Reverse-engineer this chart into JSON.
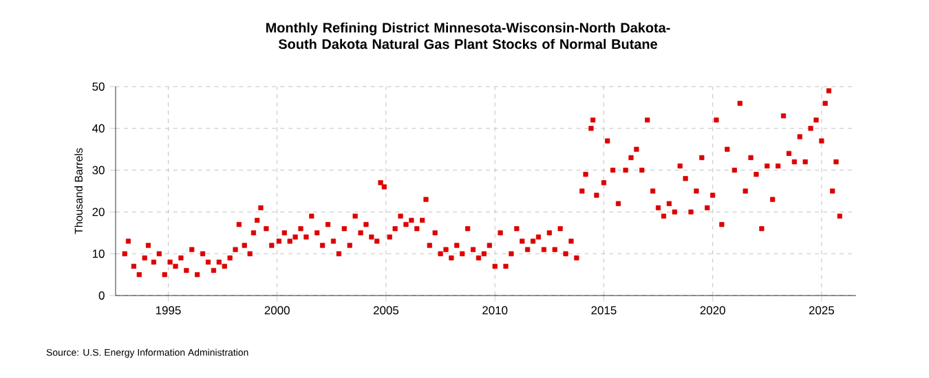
{
  "chart_data": {
    "type": "scatter",
    "title": "Monthly Refining District Minnesota-Wisconsin-North Dakota-South Dakota Natural Gas Plant Stocks of Normal Butane",
    "ylabel": "Thousand Barrels",
    "annotations": [
      "Source: U.S. Energy Information Administration"
    ],
    "x": [
      "1993-01",
      "1993-03",
      "1993-06",
      "1993-09",
      "1993-12",
      "1994-02",
      "1994-05",
      "1994-08",
      "1994-11",
      "1995-02",
      "1995-05",
      "1995-08",
      "1995-11",
      "1996-02",
      "1996-05",
      "1996-08",
      "1996-11",
      "1997-02",
      "1997-05",
      "1997-08",
      "1997-11",
      "1998-02",
      "1998-04",
      "1998-07",
      "1998-10",
      "1998-12",
      "1999-02",
      "1999-04",
      "1999-07",
      "1999-10",
      "2000-02",
      "2000-05",
      "2000-08",
      "2000-11",
      "2001-02",
      "2001-05",
      "2001-08",
      "2001-11",
      "2002-02",
      "2002-05",
      "2002-08",
      "2002-11",
      "2003-02",
      "2003-05",
      "2003-08",
      "2003-11",
      "2004-02",
      "2004-05",
      "2004-08",
      "2004-10",
      "2004-12",
      "2005-03",
      "2005-06",
      "2005-09",
      "2005-12",
      "2006-03",
      "2006-06",
      "2006-09",
      "2006-11",
      "2007-01",
      "2007-04",
      "2007-07",
      "2007-10",
      "2008-01",
      "2008-04",
      "2008-07",
      "2008-10",
      "2009-01",
      "2009-04",
      "2009-07",
      "2009-10",
      "2010-01",
      "2010-04",
      "2010-07",
      "2010-10",
      "2011-01",
      "2011-04",
      "2011-07",
      "2011-10",
      "2012-01",
      "2012-04",
      "2012-07",
      "2012-10",
      "2013-01",
      "2013-04",
      "2013-07",
      "2013-10",
      "2014-01",
      "2014-03",
      "2014-06",
      "2014-07",
      "2014-09",
      "2015-01",
      "2015-03",
      "2015-06",
      "2015-09",
      "2016-01",
      "2016-04",
      "2016-07",
      "2016-10",
      "2017-01",
      "2017-04",
      "2017-07",
      "2017-10",
      "2018-01",
      "2018-04",
      "2018-07",
      "2018-10",
      "2019-01",
      "2019-04",
      "2019-07",
      "2019-10",
      "2020-01",
      "2020-03",
      "2020-06",
      "2020-09",
      "2021-01",
      "2021-04",
      "2021-07",
      "2021-10",
      "2022-01",
      "2022-04",
      "2022-07",
      "2022-10",
      "2023-01",
      "2023-04",
      "2023-07",
      "2023-10",
      "2024-01",
      "2024-04",
      "2024-07",
      "2024-10",
      "2025-01",
      "2025-03",
      "2025-05",
      "2025-07",
      "2025-09",
      "2025-11"
    ],
    "values": [
      10,
      13,
      7,
      5,
      9,
      12,
      8,
      10,
      5,
      8,
      7,
      9,
      6,
      11,
      5,
      10,
      8,
      6,
      8,
      7,
      9,
      11,
      17,
      12,
      10,
      15,
      18,
      21,
      16,
      12,
      13,
      15,
      13,
      14,
      16,
      14,
      19,
      15,
      12,
      17,
      13,
      10,
      16,
      12,
      19,
      15,
      17,
      14,
      13,
      27,
      26,
      14,
      16,
      19,
      17,
      18,
      16,
      18,
      23,
      12,
      15,
      10,
      11,
      9,
      12,
      10,
      16,
      11,
      9,
      10,
      12,
      7,
      15,
      7,
      10,
      16,
      13,
      11,
      13,
      14,
      11,
      15,
      11,
      16,
      10,
      13,
      9,
      25,
      29,
      40,
      42,
      24,
      27,
      37,
      30,
      22,
      30,
      33,
      35,
      30,
      42,
      25,
      21,
      19,
      22,
      20,
      31,
      28,
      20,
      25,
      33,
      21,
      24,
      42,
      17,
      35,
      30,
      46,
      25,
      33,
      29,
      16,
      31,
      23,
      31,
      43,
      34,
      32,
      38,
      32,
      40,
      42,
      37,
      46,
      49,
      25,
      32,
      19
    ],
    "color": "#dd0000",
    "marker": "square",
    "xlim": [
      "1992-08",
      "2026-08"
    ],
    "ylim": [
      0,
      50
    ],
    "xticks": [
      "1995",
      "2000",
      "2005",
      "2010",
      "2015",
      "2020",
      "2025"
    ],
    "yticks": [
      0,
      10,
      20,
      30,
      40,
      50
    ],
    "grid": true
  }
}
